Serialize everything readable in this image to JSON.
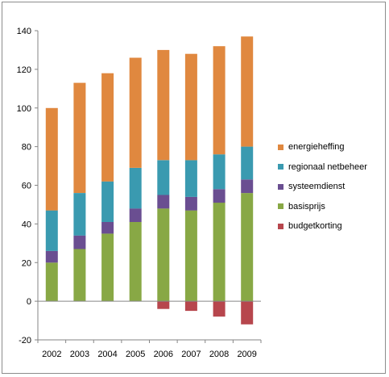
{
  "chart_data": {
    "type": "bar",
    "stacked": true,
    "categories": [
      "2002",
      "2003",
      "2004",
      "2005",
      "2006",
      "2007",
      "2008",
      "2009"
    ],
    "ylim": [
      -20,
      140
    ],
    "yticks": [
      -20,
      0,
      20,
      40,
      60,
      80,
      100,
      120,
      140
    ],
    "grid": false,
    "legend_position": "right",
    "series": [
      {
        "name": "energieheffing",
        "color": "#E0883F",
        "values": [
          53,
          57,
          56,
          57,
          57,
          55,
          56,
          57
        ]
      },
      {
        "name": "regionaal netbeheer",
        "color": "#3A9AB0",
        "values": [
          21,
          22,
          21,
          21,
          18,
          19,
          18,
          17
        ]
      },
      {
        "name": "systeemdienst",
        "color": "#6A4E91",
        "values": [
          6,
          7,
          6,
          7,
          7,
          7,
          7,
          7
        ]
      },
      {
        "name": "basisprijs",
        "color": "#88A845",
        "values": [
          20,
          27,
          35,
          41,
          48,
          47,
          51,
          56
        ]
      },
      {
        "name": "budgetkorting",
        "color": "#B7464D",
        "values": [
          0,
          0,
          0,
          0,
          -4,
          -5,
          -8,
          -12
        ]
      }
    ]
  }
}
